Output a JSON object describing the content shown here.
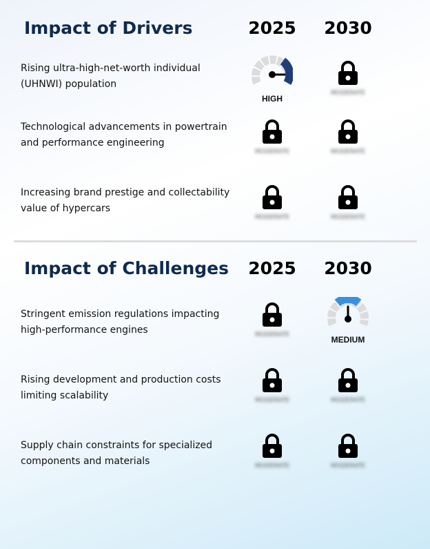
{
  "drivers": {
    "title": "Impact of Drivers",
    "year1": "2025",
    "year2": "2030",
    "rows": [
      {
        "label": "Rising ultra-high-net-worth individual (UHNWI) population",
        "y2025": {
          "type": "gauge",
          "level": "HIGH",
          "color": "#1f3d7a"
        },
        "y2030": {
          "type": "lock",
          "hidden_text": "MODERATE"
        }
      },
      {
        "label": "Technological advancements in powertrain and performance engineering",
        "y2025": {
          "type": "lock",
          "hidden_text": "MODERATE"
        },
        "y2030": {
          "type": "lock",
          "hidden_text": "MODERATE"
        }
      },
      {
        "label": "Increasing brand prestige and collectability value of hypercars",
        "y2025": {
          "type": "lock",
          "hidden_text": "MODERATE"
        },
        "y2030": {
          "type": "lock",
          "hidden_text": "MODERATE"
        }
      }
    ]
  },
  "challenges": {
    "title": "Impact of Challenges",
    "year1": "2025",
    "year2": "2030",
    "rows": [
      {
        "label": "Stringent emission regulations impacting high-performance engines",
        "y2025": {
          "type": "lock",
          "hidden_text": "MODERATE"
        },
        "y2030": {
          "type": "gauge",
          "level": "MEDIUM",
          "color": "#3a8fe0"
        }
      },
      {
        "label": "Rising development and production costs limiting scalability",
        "y2025": {
          "type": "lock",
          "hidden_text": "MODERATE"
        },
        "y2030": {
          "type": "lock",
          "hidden_text": "MODERATE"
        }
      },
      {
        "label": "Supply chain constraints for specialized components and materials",
        "y2025": {
          "type": "lock",
          "hidden_text": "MODERATE"
        },
        "y2030": {
          "type": "lock",
          "hidden_text": "MODERATE"
        }
      }
    ]
  },
  "colors": {
    "title": "#0e2a4f",
    "gauge_track": "#dcdcdc",
    "lock": "#000000"
  }
}
